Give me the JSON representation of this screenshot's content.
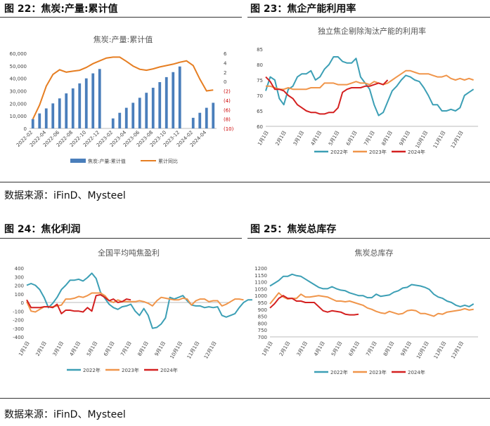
{
  "figures": {
    "f22": {
      "label": "图 22：焦炭:产量:累计值"
    },
    "f23": {
      "label": "图 23：焦企产能利用率"
    },
    "f24": {
      "label": "图 24：焦化利润"
    },
    "f25": {
      "label": "图 25：焦炭总库存"
    }
  },
  "sources": {
    "top": "数据来源：iFinD、Mysteel",
    "bottom": "数据来源：iFinD、Mysteel"
  },
  "chart_data": [
    {
      "id": "c22",
      "type": "bar",
      "title": "焦炭:产量:累计值",
      "colors": {
        "bar": "#4a7ebb",
        "line": "#e67e22"
      },
      "categories": [
        "2022-02",
        "2022-03",
        "2022-04",
        "2022-05",
        "2022-06",
        "2022-07",
        "2022-08",
        "2022-09",
        "2022-10",
        "2022-11",
        "2022-12",
        "2023-01",
        "2023-02",
        "2023-03",
        "2023-04",
        "2023-05",
        "2023-06",
        "2023-07",
        "2023-08",
        "2023-09",
        "2023-10",
        "2023-11",
        "2023-12",
        "2024-01",
        "2024-02",
        "2024-03",
        "2024-04",
        "2024-05"
      ],
      "tick_labels": [
        "2022-02",
        "2022-04",
        "2022-06",
        "2022-08",
        "2022-10",
        "2022-12",
        "2023-02",
        "2023-04",
        "2023-06",
        "2023-08",
        "2023-10",
        "2023-12",
        "2024-02",
        "2024-04"
      ],
      "series": [
        {
          "name": "焦炭:产量:累计值",
          "axis": "left",
          "values": [
            7500,
            12000,
            16000,
            20000,
            24000,
            28000,
            32000,
            36000,
            40000,
            44000,
            47500,
            null,
            8000,
            12500,
            16500,
            20500,
            24500,
            28500,
            32500,
            37000,
            41000,
            45000,
            49500,
            null,
            8500,
            12500,
            16500,
            20500
          ]
        },
        {
          "name": "累计同比",
          "axis": "right",
          "values": [
            -8,
            -5,
            -1,
            1.5,
            2.5,
            2.0,
            2.2,
            2.4,
            3.0,
            3.8,
            4.4,
            5.0,
            5.2,
            5.2,
            4.3,
            3.3,
            2.6,
            2.4,
            2.7,
            3.1,
            3.4,
            3.7,
            4.1,
            4.4,
            3.4,
            0.5,
            -2,
            -1.8
          ]
        }
      ],
      "y_left_ticks": [
        "0",
        "10,000",
        "20,000",
        "30,000",
        "40,000",
        "50,000",
        "60,000"
      ],
      "y_left_range": [
        0,
        60000
      ],
      "y_right_ticks": [
        "6",
        "4",
        "2",
        "0",
        "(2)",
        "(4)",
        "(6)",
        "(8)",
        "(10)"
      ],
      "y_right_range": [
        -10,
        6
      ],
      "legend": [
        "焦炭:产量:累计值",
        "累计同比"
      ],
      "legend_position": "bottom"
    },
    {
      "id": "c23",
      "type": "line",
      "title": "独立焦企剔除淘汰产能的利用率",
      "x_labels": [
        "1月1日",
        "2月1日",
        "3月1日",
        "4月1日",
        "5月1日",
        "6月1日",
        "7月1日",
        "8月1日",
        "9月1日",
        "10月1日",
        "11月1日",
        "12月1日"
      ],
      "y_range": [
        60,
        85
      ],
      "y_ticks": [
        "60",
        "65",
        "70",
        "75",
        "80",
        "85"
      ],
      "series": [
        {
          "name": "2022年",
          "color": "#3c9fb5",
          "values": [
            71.5,
            76,
            75,
            69,
            67,
            72,
            73,
            76,
            77,
            77,
            78,
            75,
            76,
            78.5,
            80,
            82.5,
            82.5,
            81,
            80.5,
            80.5,
            82,
            76,
            74,
            72,
            67,
            63.5,
            64.5,
            68,
            71.5,
            73,
            75,
            76.5,
            76,
            75,
            74.5,
            72.5,
            70,
            67,
            67,
            65,
            65,
            65.5,
            65,
            66,
            70,
            71,
            72
          ]
        },
        {
          "name": "2023年",
          "color": "#f0954a",
          "values": [
            73,
            73,
            72.5,
            72,
            72,
            72.5,
            72,
            72,
            72,
            72,
            72.5,
            72.5,
            72.5,
            74,
            74,
            74,
            73.5,
            73.5,
            73.5,
            74,
            74.5,
            74,
            74,
            73.5,
            74.5,
            74,
            73.5,
            74,
            75,
            76,
            77,
            78,
            78,
            77.5,
            77,
            77,
            77,
            76.5,
            76,
            76,
            76.5,
            75.5,
            75,
            75.5,
            75,
            75.5,
            75
          ]
        },
        {
          "name": "2024年",
          "color": "#d42020",
          "values": [
            76,
            74.5,
            72,
            72,
            71.5,
            70,
            69,
            67,
            66,
            65,
            64.5,
            64.5,
            64,
            64,
            64.5,
            64.5,
            66,
            71,
            72,
            72.5,
            72.5,
            72.5,
            73,
            73,
            73.5,
            74,
            73.5,
            75
          ]
        }
      ],
      "legend": [
        "2022年",
        "2023年",
        "2024年"
      ],
      "legend_position": "bottom"
    },
    {
      "id": "c24",
      "type": "line",
      "title": "全国平均吨焦盈利",
      "x_labels": [
        "1月1日",
        "2月1日",
        "3月1日",
        "4月1日",
        "5月1日",
        "6月1日",
        "7月1日",
        "8月1日",
        "9月1日",
        "10月1日",
        "11月1日",
        "12月1日"
      ],
      "y_range": [
        -400,
        400
      ],
      "y_ticks": [
        "-400",
        "-300",
        "-200",
        "-100",
        "0",
        "100",
        "200",
        "300",
        "400"
      ],
      "series": [
        {
          "name": "2022年",
          "color": "#3c9fb5",
          "values": [
            200,
            220,
            200,
            150,
            60,
            -60,
            -10,
            60,
            150,
            200,
            260,
            260,
            270,
            250,
            290,
            340,
            280,
            120,
            50,
            -20,
            -60,
            -80,
            -50,
            -40,
            -20,
            -100,
            -150,
            -70,
            -150,
            -300,
            -290,
            -250,
            -180,
            60,
            40,
            60,
            80,
            20,
            -30,
            -40,
            -40,
            -60,
            -50,
            -60,
            -50,
            -150,
            -170,
            -150,
            -130,
            -60,
            0,
            30,
            30
          ]
        },
        {
          "name": "2023年",
          "color": "#f0954a",
          "values": [
            10,
            -100,
            -110,
            -80,
            -50,
            -50,
            -50,
            -40,
            -30,
            40,
            40,
            50,
            70,
            60,
            80,
            110,
            110,
            110,
            80,
            20,
            0,
            30,
            10,
            10,
            10,
            10,
            20,
            10,
            -10,
            -40,
            20,
            60,
            50,
            40,
            30,
            30,
            50,
            40,
            -30,
            20,
            40,
            40,
            10,
            20,
            20,
            -40,
            -20,
            10,
            40,
            40,
            30
          ]
        },
        {
          "name": "2024年",
          "color": "#d42020",
          "values": [
            30,
            -60,
            -60,
            -60,
            -50,
            -50,
            -60,
            -20,
            -130,
            -90,
            -90,
            -100,
            -100,
            -110,
            -60,
            -100,
            80,
            90,
            60,
            20,
            40,
            0,
            10,
            40,
            30
          ]
        }
      ],
      "legend": [
        "2022年",
        "2023年",
        "2024年"
      ],
      "legend_position": "bottom"
    },
    {
      "id": "c25",
      "type": "line",
      "title": "焦炭总库存",
      "x_labels": [
        "1月1日",
        "2月1日",
        "3月1日",
        "4月1日",
        "5月1日",
        "6月1日",
        "7月1日",
        "8月1日",
        "9月1日",
        "10月1日",
        "11月1日",
        "12月1日"
      ],
      "y_range": [
        700,
        1200
      ],
      "y_ticks": [
        "700",
        "750",
        "800",
        "850",
        "900",
        "950",
        "1000",
        "1050",
        "1100",
        "1150",
        "1200"
      ],
      "series": [
        {
          "name": "2022年",
          "color": "#3c9fb5",
          "values": [
            1070,
            1090,
            1110,
            1140,
            1140,
            1155,
            1145,
            1140,
            1120,
            1100,
            1080,
            1060,
            1050,
            1050,
            1065,
            1050,
            1040,
            1035,
            1020,
            1010,
            1000,
            1000,
            985,
            985,
            1010,
            995,
            1000,
            1005,
            1025,
            1035,
            1055,
            1060,
            1080,
            1075,
            1070,
            1060,
            1045,
            1010,
            990,
            980,
            960,
            950,
            930,
            920,
            930,
            920,
            940
          ]
        },
        {
          "name": "2023年",
          "color": "#f0954a",
          "values": [
            940,
            980,
            1020,
            990,
            975,
            980,
            980,
            1010,
            990,
            990,
            995,
            1000,
            995,
            990,
            975,
            960,
            960,
            955,
            960,
            950,
            940,
            930,
            910,
            900,
            885,
            875,
            870,
            885,
            875,
            865,
            870,
            890,
            895,
            890,
            870,
            870,
            860,
            850,
            870,
            865,
            880,
            885,
            890,
            895,
            905,
            895,
            900
          ]
        },
        {
          "name": "2024年",
          "color": "#d42020",
          "values": [
            910,
            940,
            980,
            1000,
            980,
            980,
            960,
            960,
            950,
            950,
            950,
            920,
            890,
            880,
            890,
            885,
            880,
            865,
            860,
            860,
            865
          ]
        }
      ],
      "legend": [
        "2022年",
        "2023年",
        "2024年"
      ],
      "legend_position": "bottom"
    }
  ]
}
